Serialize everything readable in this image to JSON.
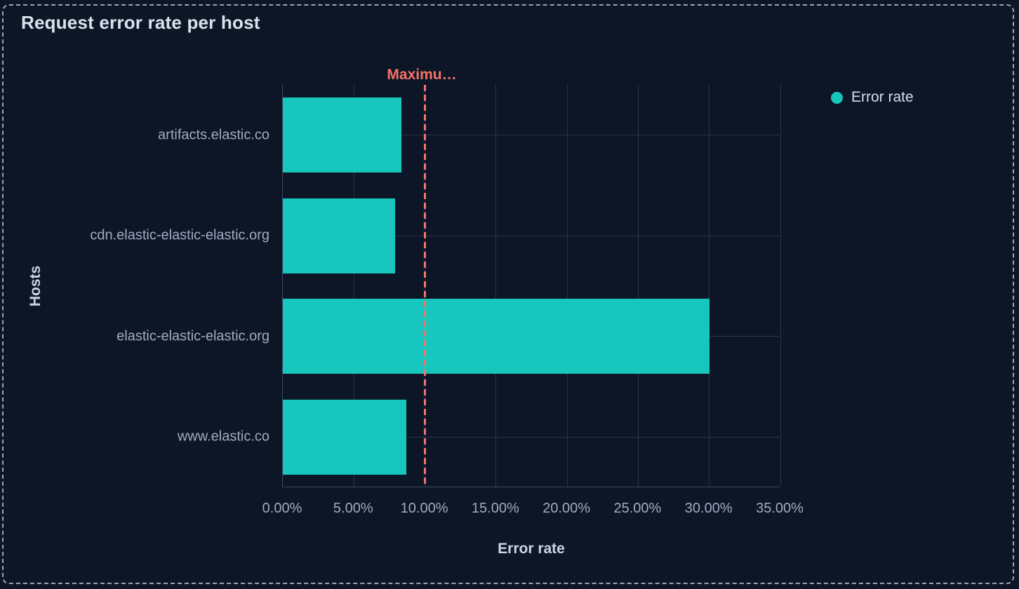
{
  "panel": {
    "title": "Request error rate per host"
  },
  "legend": {
    "position": "right",
    "items": [
      {
        "label": "Error rate",
        "color": "#17c6bd"
      }
    ]
  },
  "chart_data": {
    "type": "bar",
    "orientation": "horizontal",
    "title": "Request error rate per host",
    "xlabel": "Error rate",
    "ylabel": "Hosts",
    "categories": [
      "artifacts.elastic.co",
      "cdn.elastic-elastic-elastic.org",
      "elastic-elastic-elastic.org",
      "www.elastic.co"
    ],
    "series": [
      {
        "name": "Error rate",
        "color": "#17c6bd",
        "values": [
          8.35,
          7.9,
          30.0,
          8.7
        ]
      }
    ],
    "value_unit": "percent",
    "xlim": [
      0,
      35
    ],
    "x_ticks": [
      {
        "value": 0,
        "label": "0.00%"
      },
      {
        "value": 5,
        "label": "5.00%"
      },
      {
        "value": 10,
        "label": "10.00%"
      },
      {
        "value": 15,
        "label": "15.00%"
      },
      {
        "value": 20,
        "label": "20.00%"
      },
      {
        "value": 25,
        "label": "25.00%"
      },
      {
        "value": 30,
        "label": "30.00%"
      },
      {
        "value": 35,
        "label": "35.00%"
      }
    ],
    "grid": true,
    "legend_position": "right",
    "annotation": {
      "label": "Maximu…",
      "value": 10,
      "color": "#f6726a",
      "style": "dashed"
    }
  },
  "colors": {
    "background": "#0d1627",
    "panel_border": "#97a6bf",
    "bar": "#17c6bd",
    "annotation": "#f6726a",
    "gridline": "#2a3349",
    "axis_line": "#3c4860",
    "tick_text": "#9fabc0",
    "axis_title_text": "#ccd5e2",
    "panel_title_text": "#dbe2ec",
    "legend_text": "#d5dce8"
  }
}
